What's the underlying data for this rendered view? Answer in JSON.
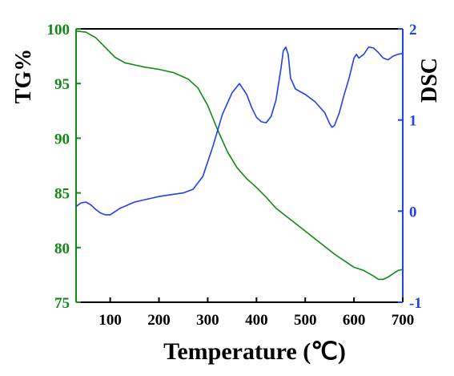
{
  "chart_data": {
    "type": "line",
    "xlabel": "Temperature (℃)",
    "ylabel_left": "TG%",
    "ylabel_right": "DSC",
    "xlim": [
      30,
      700
    ],
    "ylim_left": [
      75,
      100
    ],
    "ylim_right": [
      -1,
      2
    ],
    "x_ticks": [
      100,
      200,
      300,
      400,
      500,
      600,
      700
    ],
    "y_left_ticks": [
      75,
      80,
      85,
      90,
      95,
      100
    ],
    "y_right_ticks": [
      -1,
      0,
      1,
      2
    ],
    "grid": false,
    "legend": "none",
    "colors": {
      "tg": "#0f8a12",
      "dsc": "#1f3ff0",
      "frame": "#000000"
    },
    "series": [
      {
        "axis": "left",
        "color": "#0f8a12",
        "x": [
          30,
          50,
          70,
          90,
          110,
          130,
          150,
          170,
          200,
          230,
          260,
          280,
          300,
          320,
          340,
          360,
          380,
          400,
          420,
          440,
          460,
          480,
          500,
          520,
          540,
          560,
          580,
          600,
          620,
          640,
          650,
          660,
          670,
          680,
          690,
          700
        ],
        "y": [
          99.8,
          99.7,
          99.2,
          98.3,
          97.4,
          96.9,
          96.7,
          96.5,
          96.3,
          96.0,
          95.4,
          94.6,
          93.0,
          90.8,
          88.8,
          87.3,
          86.3,
          85.5,
          84.6,
          83.6,
          82.9,
          82.2,
          81.5,
          80.8,
          80.1,
          79.4,
          78.8,
          78.2,
          77.9,
          77.4,
          77.1,
          77.1,
          77.3,
          77.6,
          77.9,
          78.0
        ]
      },
      {
        "axis": "right",
        "color": "#1f3ff0",
        "x": [
          30,
          40,
          50,
          60,
          70,
          80,
          90,
          100,
          120,
          150,
          200,
          250,
          270,
          290,
          310,
          330,
          350,
          365,
          380,
          390,
          400,
          410,
          420,
          430,
          440,
          450,
          455,
          460,
          465,
          470,
          480,
          500,
          520,
          540,
          550,
          555,
          560,
          570,
          580,
          590,
          600,
          605,
          610,
          620,
          630,
          640,
          650,
          660,
          670,
          680,
          690,
          700
        ],
        "y": [
          0.05,
          0.09,
          0.1,
          0.07,
          0.02,
          -0.02,
          -0.04,
          -0.04,
          0.03,
          0.1,
          0.16,
          0.2,
          0.24,
          0.38,
          0.7,
          1.06,
          1.3,
          1.4,
          1.28,
          1.14,
          1.03,
          0.98,
          0.97,
          1.04,
          1.22,
          1.56,
          1.76,
          1.8,
          1.72,
          1.46,
          1.34,
          1.28,
          1.2,
          1.08,
          0.96,
          0.92,
          0.94,
          1.08,
          1.28,
          1.46,
          1.68,
          1.72,
          1.68,
          1.72,
          1.8,
          1.79,
          1.74,
          1.68,
          1.66,
          1.7,
          1.72,
          1.73
        ]
      }
    ]
  }
}
